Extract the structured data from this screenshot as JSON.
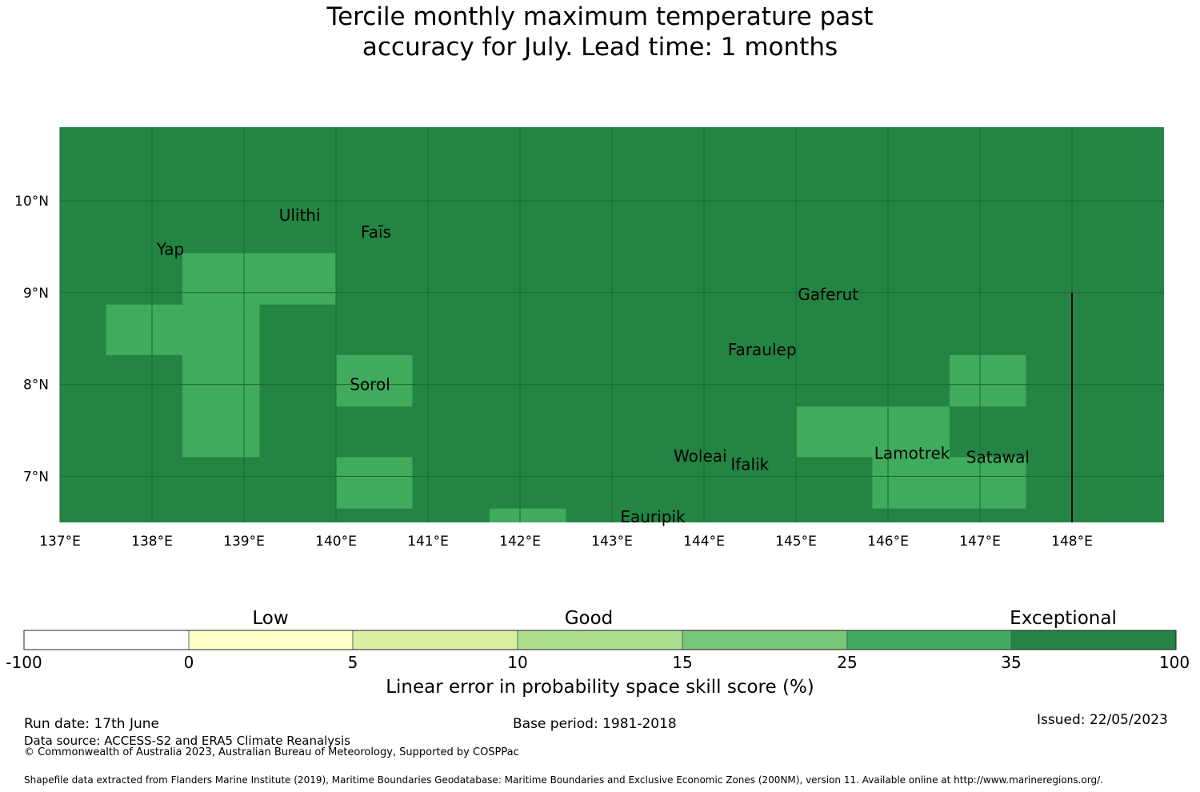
{
  "title": {
    "line1": "Tercile monthly maximum temperature past",
    "line2": "accuracy for July. Lead time: 1 months"
  },
  "colors": {
    "exceptional": "#238443",
    "very_good": "#41ab5d",
    "grid_line": "#1c6a36"
  },
  "map": {
    "lon_range": [
      137.0,
      149.0
    ],
    "lat_range": [
      6.5,
      10.8
    ],
    "lon_ticks": [
      {
        "value": 137,
        "label": "137°E"
      },
      {
        "value": 138,
        "label": "138°E"
      },
      {
        "value": 139,
        "label": "139°E"
      },
      {
        "value": 140,
        "label": "140°E"
      },
      {
        "value": 141,
        "label": "141°E"
      },
      {
        "value": 142,
        "label": "142°E"
      },
      {
        "value": 143,
        "label": "143°E"
      },
      {
        "value": 144,
        "label": "144°E"
      },
      {
        "value": 145,
        "label": "145°E"
      },
      {
        "value": 146,
        "label": "146°E"
      },
      {
        "value": 147,
        "label": "147°E"
      },
      {
        "value": 148,
        "label": "148°E"
      }
    ],
    "lat_ticks": [
      {
        "value": 7,
        "label": "7°N"
      },
      {
        "value": 8,
        "label": "8°N"
      },
      {
        "value": 9,
        "label": "9°N"
      },
      {
        "value": 10,
        "label": "10°N"
      }
    ],
    "background_category": "exceptional",
    "cells": [
      {
        "lon": [
          138.33,
          140.0
        ],
        "lat": [
          8.87,
          9.43
        ],
        "category": "very_good"
      },
      {
        "lon": [
          137.5,
          138.33
        ],
        "lat": [
          8.32,
          8.87
        ],
        "category": "very_good"
      },
      {
        "lon": [
          138.33,
          139.17
        ],
        "lat": [
          7.21,
          8.87
        ],
        "category": "very_good"
      },
      {
        "lon": [
          140.0,
          140.83
        ],
        "lat": [
          7.76,
          8.32
        ],
        "category": "very_good"
      },
      {
        "lon": [
          140.0,
          140.83
        ],
        "lat": [
          6.65,
          7.21
        ],
        "category": "very_good"
      },
      {
        "lon": [
          141.67,
          142.5
        ],
        "lat": [
          6.5,
          6.65
        ],
        "category": "very_good"
      },
      {
        "lon": [
          145.0,
          146.67
        ],
        "lat": [
          7.21,
          7.76
        ],
        "category": "very_good"
      },
      {
        "lon": [
          145.83,
          147.5
        ],
        "lat": [
          6.65,
          7.21
        ],
        "category": "very_good"
      },
      {
        "lon": [
          146.67,
          147.5
        ],
        "lat": [
          7.76,
          8.32
        ],
        "category": "very_good"
      }
    ],
    "boundary_line": {
      "lon": 148.0,
      "lat": [
        6.5,
        9.0
      ]
    },
    "places": [
      {
        "name": "Ulithi",
        "lon": 139.38,
        "lat": 9.85
      },
      {
        "name": "Faīs",
        "lon": 140.27,
        "lat": 9.67
      },
      {
        "name": "Yap",
        "lon": 138.05,
        "lat": 9.48
      },
      {
        "name": "Gaferut",
        "lon": 145.02,
        "lat": 8.99
      },
      {
        "name": "Faraulep",
        "lon": 144.26,
        "lat": 8.39
      },
      {
        "name": "Sorol",
        "lon": 140.15,
        "lat": 8.01
      },
      {
        "name": "Woleai",
        "lon": 143.67,
        "lat": 7.23
      },
      {
        "name": "Ifalik",
        "lon": 144.29,
        "lat": 7.14
      },
      {
        "name": "Lamotrek",
        "lon": 145.85,
        "lat": 7.26
      },
      {
        "name": "Satawal",
        "lon": 146.85,
        "lat": 7.22
      },
      {
        "name": "Eauripik",
        "lon": 143.09,
        "lat": 6.57
      }
    ]
  },
  "colorbar": {
    "captions": [
      "Low",
      "Good",
      "Exceptional"
    ],
    "tick_labels": [
      "-100",
      "0",
      "5",
      "10",
      "15",
      "25",
      "35",
      "100"
    ],
    "segment_colors": [
      "#ffffff",
      "#ffffcc",
      "#d9f0a3",
      "#addd8e",
      "#78c679",
      "#41ab5d",
      "#238443"
    ],
    "axis_label": "Linear error in probability space skill score (%)"
  },
  "footer": {
    "run_date": "Run date: 17th June",
    "base_period": "Base period: 1981-2018",
    "issued": "Issued: 22/05/2023",
    "data_source": "Data source: ACCESS-S2 and ERA5 Climate Reanalysis",
    "copyright": "© Commonwealth of Australia 2023, Australian Bureau of Meteorology, Supported by COSPPac",
    "shapefile": "Shapefile data extracted from Flanders Marine Institute (2019), Maritime Boundaries Geodatabase: Maritime Boundaries and Exclusive Economic Zones (200NM), version 11. Available online at http://www.marineregions.org/."
  }
}
